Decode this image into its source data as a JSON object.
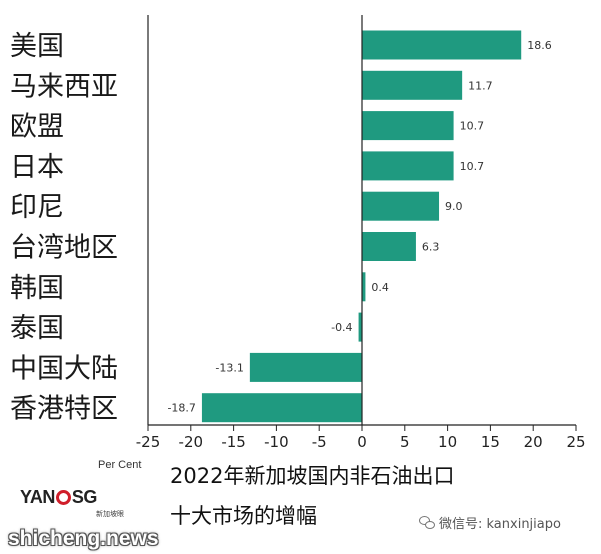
{
  "chart_data": {
    "type": "bar",
    "orientation": "horizontal",
    "title": "2022年新加坡国内非石油出口",
    "subtitle": "十大市场的增幅",
    "xlabel": "Per Cent",
    "ylabel": "",
    "categories": [
      "美国",
      "马来西亚",
      "欧盟",
      "日本",
      "印尼",
      "台湾地区",
      "韩国",
      "泰国",
      "中国大陆",
      "香港特区"
    ],
    "values": [
      18.6,
      11.7,
      10.7,
      10.7,
      9.0,
      6.3,
      0.4,
      -0.4,
      -13.1,
      -18.7
    ],
    "value_labels": [
      "18.6",
      "11.7",
      "10.7",
      "10.7",
      "9.0",
      "6.3",
      "0.4",
      "-0.4",
      "-13.1",
      "-18.7"
    ],
    "xlim": [
      -25,
      25
    ],
    "xticks": [
      -25,
      -20,
      -15,
      -10,
      -5,
      0,
      5,
      10,
      15,
      20,
      25
    ],
    "xtick_labels": [
      "-25",
      "-20",
      "-15",
      "-10",
      "-5",
      "0",
      "5",
      "10",
      "15",
      "20",
      "25"
    ],
    "grid": false,
    "bar_color": "#1f9a80"
  },
  "branding": {
    "logo_left": "YAN",
    "logo_right": "SG",
    "logo_sub": "新加坡眼",
    "site": "shicheng.news",
    "wechat": "微信号: kanxinjiapo"
  }
}
